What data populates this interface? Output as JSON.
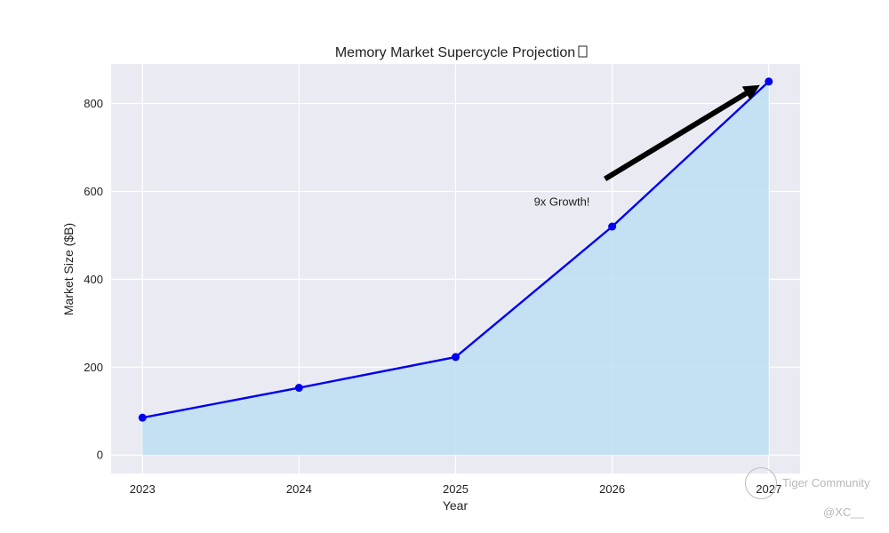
{
  "chart_data": {
    "type": "line",
    "title": "Memory Market Supercycle Projection",
    "xlabel": "Year",
    "ylabel": "Market Size ($B)",
    "x": [
      2023,
      2024,
      2025,
      2026,
      2027
    ],
    "x_tick_labels": [
      "2023",
      "2024",
      "2025",
      "2026",
      "2027"
    ],
    "y_ticks": [
      0,
      200,
      400,
      600,
      800
    ],
    "ylim": [
      -42,
      890
    ],
    "xlim": [
      2022.8,
      2027.2
    ],
    "grid": true,
    "series": [
      {
        "values": [
          85,
          153,
          223,
          520,
          850
        ],
        "color": "#0000ee",
        "fill_color": "#bfe0f2",
        "fill": true
      }
    ],
    "annotation": {
      "text": "9x Growth!",
      "text_at": [
        2025.5,
        600
      ],
      "arrow_to": [
        2027,
        850
      ]
    }
  },
  "watermark": {
    "brand": "Tiger Community",
    "handle": "@XC__"
  },
  "colors": {
    "plot_background": "#eaeaf2",
    "grid": "#ffffff"
  }
}
